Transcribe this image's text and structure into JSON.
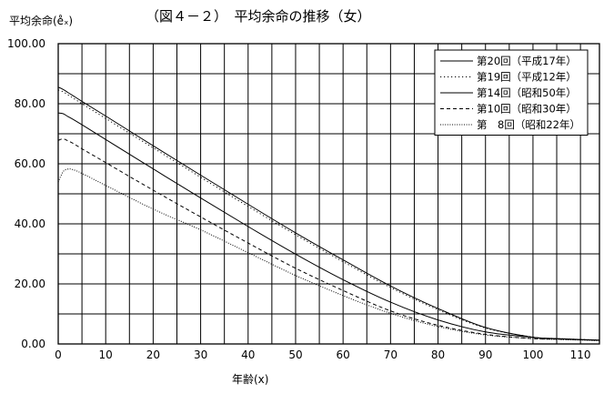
{
  "chart_data": {
    "type": "line",
    "title": "（図４－２）　平均余命の推移（女）",
    "ylabel": "平均余命(e̊ₓ)",
    "xlabel": "年齢(x)",
    "xlim": [
      0,
      114
    ],
    "ylim": [
      0,
      100
    ],
    "x_ticks": [
      0,
      10,
      20,
      30,
      40,
      50,
      60,
      70,
      80,
      90,
      100,
      110
    ],
    "y_ticks": [
      "0.00",
      "20.00",
      "40.00",
      "60.00",
      "80.00",
      "100.00"
    ],
    "grid": true,
    "legend_position": "top-right",
    "x": [
      0,
      1,
      2,
      3,
      5,
      10,
      20,
      30,
      40,
      50,
      60,
      70,
      80,
      90,
      100,
      105,
      110,
      114
    ],
    "series": [
      {
        "name": "第20回（平成17年）",
        "style": "solid",
        "values": [
          85.5,
          84.8,
          83.8,
          82.8,
          80.8,
          75.9,
          66.0,
          56.2,
          46.5,
          37.0,
          28.0,
          19.3,
          11.8,
          5.5,
          2.2,
          1.7,
          1.4,
          1.2
        ]
      },
      {
        "name": "第19回（平成12年）",
        "style": "dotted",
        "values": [
          84.6,
          84.0,
          83.0,
          82.0,
          80.0,
          75.1,
          65.3,
          55.5,
          45.8,
          36.4,
          27.4,
          18.8,
          11.4,
          5.3,
          2.3,
          1.8,
          1.5,
          1.3
        ]
      },
      {
        "name": "第14回（昭和50年）",
        "style": "solid",
        "values": [
          76.9,
          76.7,
          75.8,
          74.9,
          73.0,
          68.1,
          58.3,
          48.6,
          39.1,
          29.9,
          21.4,
          13.9,
          8.0,
          4.0,
          2.2,
          1.8,
          1.5,
          1.3
        ]
      },
      {
        "name": "第10回（昭和30年）",
        "style": "dashed",
        "values": [
          67.8,
          68.3,
          67.7,
          66.9,
          65.0,
          60.4,
          51.2,
          42.3,
          33.6,
          25.2,
          17.8,
          11.0,
          6.2,
          3.2,
          1.8,
          1.6,
          1.4,
          1.2
        ]
      },
      {
        "name": "第　8回（昭和22年）",
        "style": "dense-dotted",
        "values": [
          53.9,
          57.3,
          58.2,
          58.1,
          56.8,
          52.8,
          44.9,
          38.0,
          30.4,
          22.8,
          16.1,
          10.2,
          5.8,
          3.0,
          1.8,
          1.5,
          1.3,
          1.1
        ]
      }
    ]
  }
}
